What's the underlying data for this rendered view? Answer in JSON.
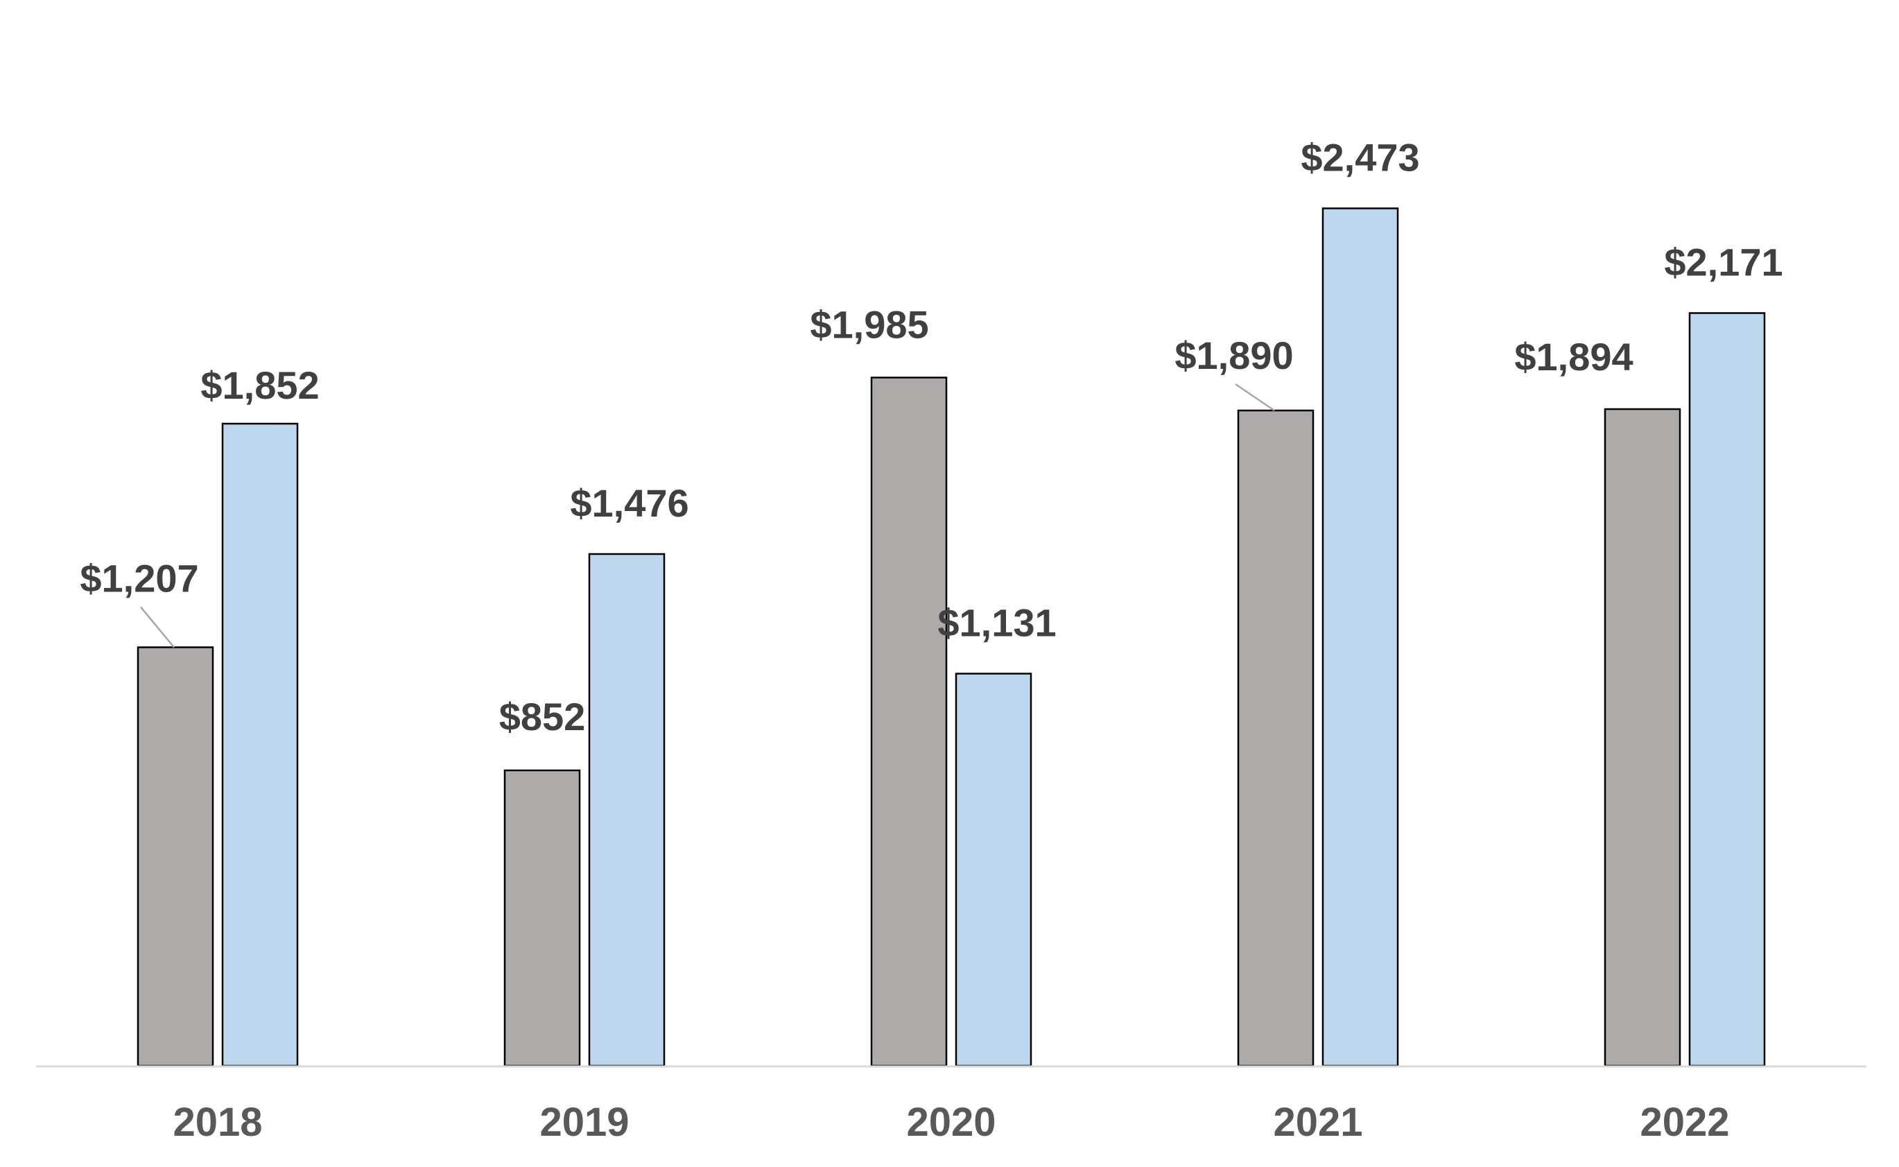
{
  "chart_data": {
    "type": "bar",
    "categories": [
      "2018",
      "2019",
      "2020",
      "2021",
      "2022"
    ],
    "series": [
      {
        "values": [
          1207,
          852,
          1985,
          1890,
          1894
        ],
        "labels": [
          "$1,207",
          "$852",
          "$1,985",
          "$1,890",
          "$1,894"
        ],
        "color": "#AEAAAA"
      },
      {
        "values": [
          1852,
          1476,
          1131,
          2473,
          2171
        ],
        "labels": [
          "$1,852",
          "$1,476",
          "$1,131",
          "$2,473",
          "$2,171"
        ],
        "color": "#BDD7EE"
      }
    ],
    "title": "",
    "xlabel": "",
    "ylabel": "",
    "ylim": [
      0,
      2800
    ],
    "grid": false,
    "legend": "none",
    "bar_outline_color": "#000000",
    "axis_line_color": "#D9D9D9"
  }
}
